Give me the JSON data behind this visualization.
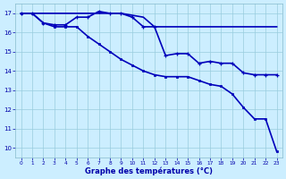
{
  "line1_x": [
    0,
    1,
    2,
    3,
    4,
    5,
    6,
    7,
    8,
    9,
    10,
    11,
    12,
    13,
    14,
    15,
    16,
    17,
    18,
    19,
    20,
    21,
    22,
    23
  ],
  "line1_y": [
    17.0,
    17.0,
    17.0,
    17.0,
    17.0,
    17.0,
    17.0,
    17.0,
    17.0,
    17.0,
    16.9,
    16.8,
    16.3,
    16.3,
    16.3,
    16.3,
    16.3,
    16.3,
    16.3,
    16.3,
    16.3,
    16.3,
    16.3,
    16.3
  ],
  "line2_x": [
    0,
    1,
    2,
    3,
    4,
    5,
    6,
    7,
    8,
    9,
    10,
    11,
    12,
    13,
    14,
    15,
    16,
    17,
    18,
    19,
    20,
    21,
    22,
    23
  ],
  "line2_y": [
    17.0,
    17.0,
    16.5,
    16.4,
    16.4,
    16.8,
    16.8,
    17.1,
    17.0,
    17.0,
    16.8,
    16.3,
    16.3,
    14.8,
    14.9,
    14.9,
    14.4,
    14.5,
    14.4,
    14.4,
    13.9,
    13.8,
    13.8,
    13.8
  ],
  "line3_x": [
    0,
    1,
    2,
    3,
    4,
    5,
    6,
    7,
    8,
    9,
    10,
    11,
    12,
    13,
    14,
    15,
    16,
    17,
    18,
    19,
    20,
    21,
    22,
    23
  ],
  "line3_y": [
    17.0,
    17.0,
    16.5,
    16.3,
    16.3,
    16.3,
    15.8,
    15.4,
    15.0,
    14.6,
    14.3,
    14.0,
    13.8,
    13.7,
    13.7,
    13.7,
    13.5,
    13.3,
    13.2,
    12.8,
    12.1,
    11.5,
    11.5,
    9.8
  ],
  "background_color": "#cceeff",
  "grid_color": "#99ccdd",
  "line_color": "#0000bb",
  "xlabel": "Graphe des températures (°C)",
  "xlim": [
    -0.5,
    23.5
  ],
  "ylim": [
    9.5,
    17.5
  ],
  "yticks": [
    10,
    11,
    12,
    13,
    14,
    15,
    16,
    17
  ],
  "xticks": [
    0,
    1,
    2,
    3,
    4,
    5,
    6,
    7,
    8,
    9,
    10,
    11,
    12,
    13,
    14,
    15,
    16,
    17,
    18,
    19,
    20,
    21,
    22,
    23
  ]
}
